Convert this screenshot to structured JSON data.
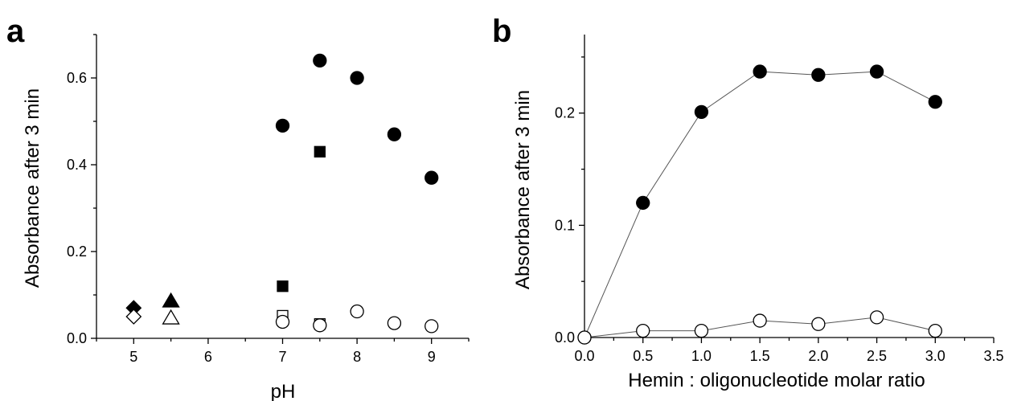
{
  "chart_data": [
    {
      "panel": "a",
      "type": "scatter",
      "xlabel": "pH",
      "ylabel": "Absorbance after 3 min",
      "xlim": [
        4.5,
        9.5
      ],
      "ylim": [
        0,
        0.7
      ],
      "xticks": [
        "5",
        "6",
        "7",
        "8",
        "9"
      ],
      "xtick_values": [
        5,
        6,
        7,
        8,
        9
      ],
      "yticks": [
        "0.0",
        "0.2",
        "0.4",
        "0.6"
      ],
      "ytick_values": [
        0,
        0.2,
        0.4,
        0.6
      ],
      "series": [
        {
          "marker": "diamond",
          "filled": true,
          "points": [
            [
              5,
              0.07
            ]
          ]
        },
        {
          "marker": "diamond",
          "filled": false,
          "points": [
            [
              5,
              0.05
            ]
          ]
        },
        {
          "marker": "triangle",
          "filled": true,
          "points": [
            [
              5.5,
              0.087
            ]
          ]
        },
        {
          "marker": "triangle",
          "filled": false,
          "points": [
            [
              5.5,
              0.048
            ]
          ]
        },
        {
          "marker": "square",
          "filled": true,
          "points": [
            [
              7,
              0.12
            ],
            [
              7.5,
              0.43
            ]
          ]
        },
        {
          "marker": "square",
          "filled": false,
          "points": [
            [
              7,
              0.052
            ],
            [
              7.5,
              0.033
            ]
          ]
        },
        {
          "marker": "circle",
          "filled": true,
          "points": [
            [
              7,
              0.49
            ],
            [
              7.5,
              0.64
            ],
            [
              8,
              0.6
            ],
            [
              8.5,
              0.47
            ],
            [
              9,
              0.37
            ]
          ]
        },
        {
          "marker": "circle",
          "filled": false,
          "points": [
            [
              7,
              0.038
            ],
            [
              7.5,
              0.03
            ],
            [
              8,
              0.062
            ],
            [
              8.5,
              0.035
            ],
            [
              9,
              0.028
            ]
          ]
        }
      ]
    },
    {
      "panel": "b",
      "type": "line",
      "xlabel": "Hemin : oligonucleotide molar ratio",
      "ylabel": "Absorbance after 3 min",
      "xlim": [
        0,
        3.5
      ],
      "ylim": [
        0,
        0.27
      ],
      "xticks": [
        "0.0",
        "0.5",
        "1.0",
        "1.5",
        "2.0",
        "2.5",
        "3.0",
        "3.5"
      ],
      "xtick_values": [
        0,
        0.5,
        1.0,
        1.5,
        2.0,
        2.5,
        3.0,
        3.5
      ],
      "yticks": [
        "0.0",
        "0.1",
        "0.2"
      ],
      "ytick_values": [
        0,
        0.1,
        0.2
      ],
      "series": [
        {
          "marker": "circle",
          "filled": true,
          "x": [
            0,
            0.5,
            1.0,
            1.5,
            2.0,
            2.5,
            3.0
          ],
          "y": [
            0,
            0.12,
            0.201,
            0.237,
            0.234,
            0.237,
            0.21
          ]
        },
        {
          "marker": "circle",
          "filled": false,
          "x": [
            0,
            0.5,
            1.0,
            1.5,
            2.0,
            2.5,
            3.0
          ],
          "y": [
            0,
            0.006,
            0.006,
            0.015,
            0.012,
            0.018,
            0.006
          ]
        }
      ]
    }
  ]
}
